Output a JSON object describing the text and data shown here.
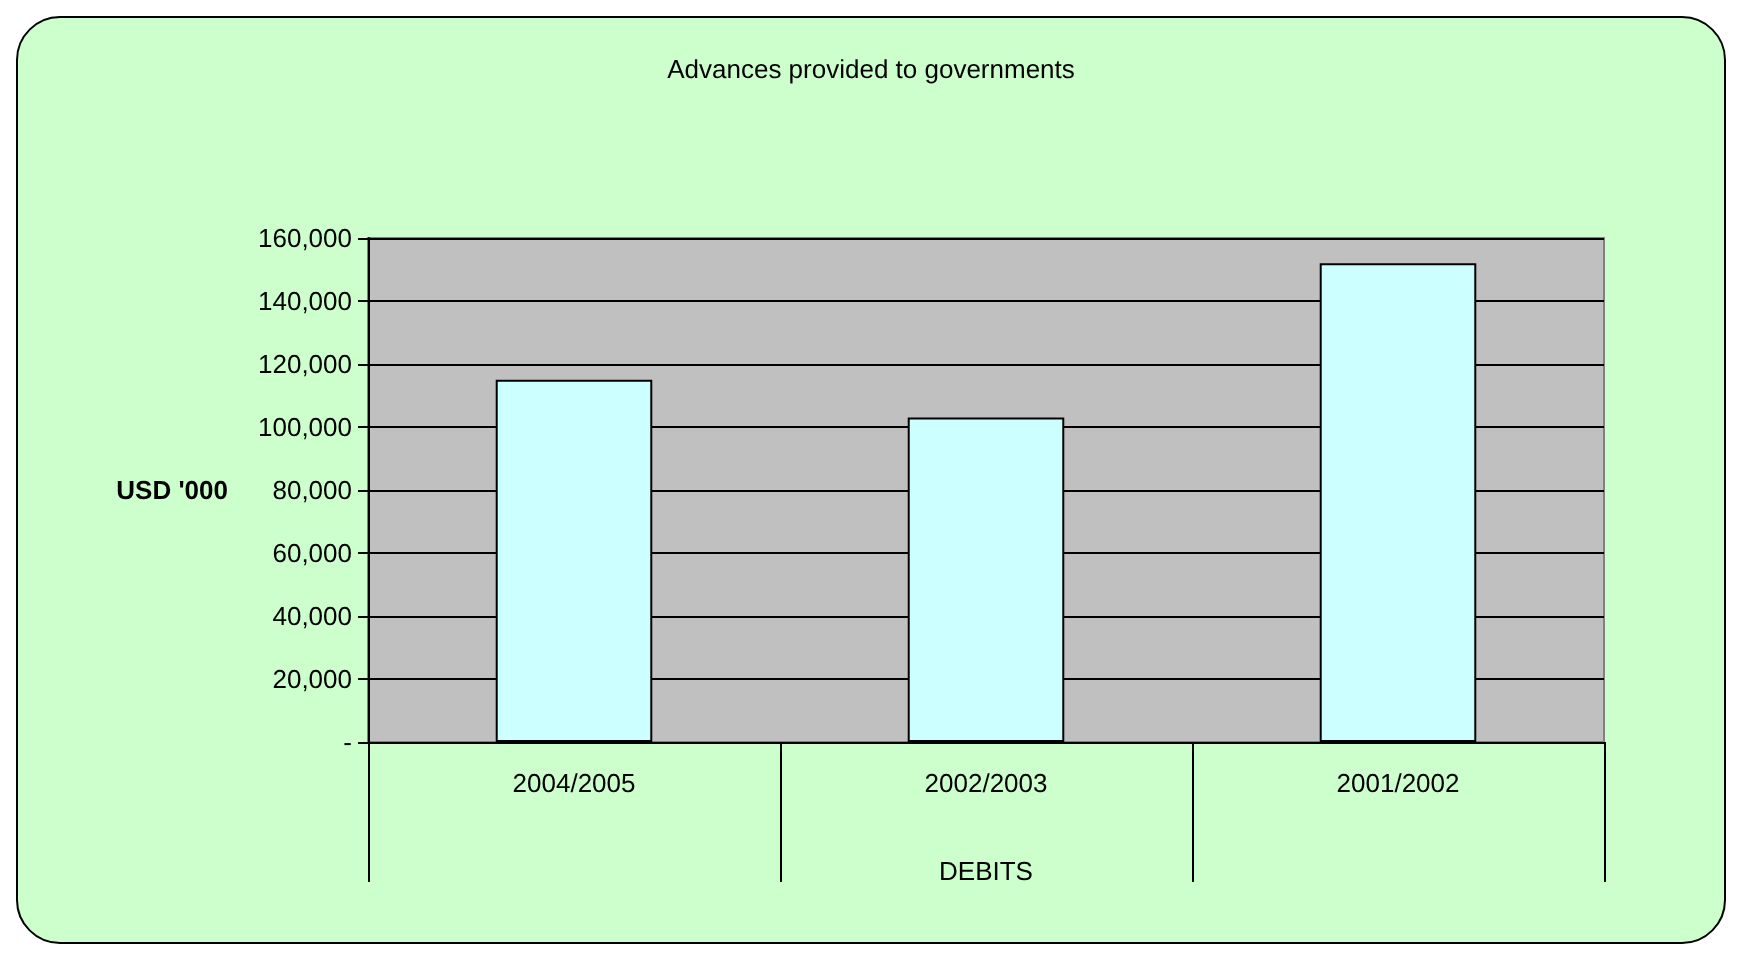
{
  "chart_data": {
    "type": "bar",
    "title": "Advances provided to governments",
    "xlabel": "DEBITS",
    "ylabel": "USD '000",
    "categories": [
      "2004/2005",
      "2002/2003",
      "2001/2002"
    ],
    "values": [
      115000,
      103000,
      152000
    ],
    "color": "#ccffff",
    "ylim": [
      0,
      160000
    ],
    "yticks": [
      {
        "value": 0,
        "label": "-"
      },
      {
        "value": 20000,
        "label": "20,000"
      },
      {
        "value": 40000,
        "label": "40,000"
      },
      {
        "value": 60000,
        "label": "60,000"
      },
      {
        "value": 80000,
        "label": "80,000"
      },
      {
        "value": 100000,
        "label": "100,000"
      },
      {
        "value": 120000,
        "label": "120,000"
      },
      {
        "value": 140000,
        "label": "140,000"
      },
      {
        "value": 160000,
        "label": "160,000"
      }
    ],
    "grid": "y"
  }
}
